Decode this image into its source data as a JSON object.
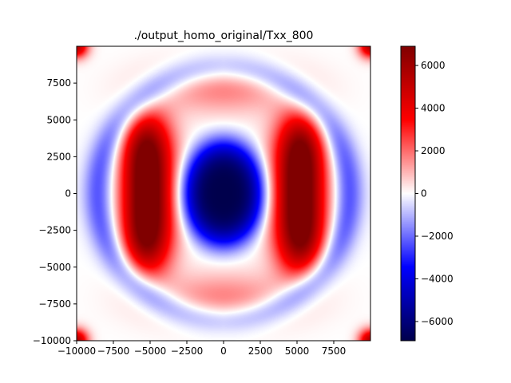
{
  "chart_data": {
    "type": "heatmap",
    "title": "./output_homo_original/Txx_800",
    "xlabel": "",
    "ylabel": "",
    "xlim": [
      -10000,
      10000
    ],
    "ylim": [
      -10000,
      10000
    ],
    "x_ticks": [
      -10000,
      -7500,
      -5000,
      -2500,
      0,
      2500,
      5000,
      7500
    ],
    "x_tick_labels": [
      "−10000",
      "−7500",
      "−5000",
      "−2500",
      "0",
      "2500",
      "5000",
      "7500"
    ],
    "y_ticks": [
      -10000,
      -7500,
      -5000,
      -2500,
      0,
      2500,
      5000,
      7500
    ],
    "y_tick_labels": [
      "−10000",
      "−7500",
      "−5000",
      "−2500",
      "0",
      "2500",
      "5000",
      "7500"
    ],
    "colormap": "seismic",
    "colorbar": {
      "vmin": -6900,
      "vmax": 6900,
      "ticks": [
        -6000,
        -4000,
        -2000,
        0,
        2000,
        4000,
        6000
      ],
      "tick_labels": [
        "−6000",
        "−4000",
        "−2000",
        "0",
        "2000",
        "4000",
        "6000"
      ]
    },
    "colors": {
      "low": "#00004c",
      "mid_low": "#0000ff",
      "zero": "#ffffff",
      "mid_high": "#ff0000",
      "high": "#800000"
    },
    "field_features": [
      {
        "region": "center",
        "value": -6900
      },
      {
        "region": "left lobe",
        "value": 6900
      },
      {
        "region": "right lobe",
        "value": 6900
      },
      {
        "region": "corners",
        "value": 4500
      },
      {
        "region": "top and bottom",
        "value": 1500
      },
      {
        "region": "outer rings",
        "value": -2000
      }
    ],
    "grid": false
  }
}
